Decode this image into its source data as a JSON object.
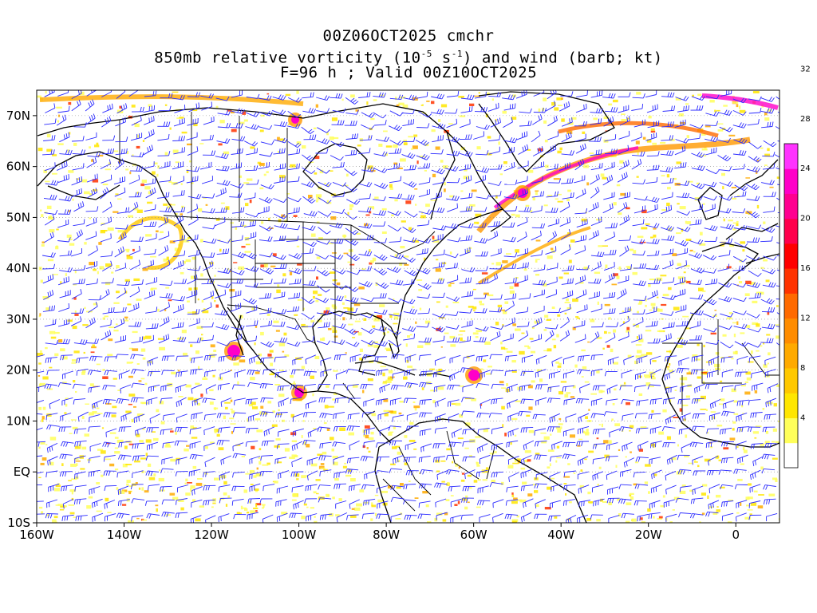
{
  "title": {
    "line1": "00Z06OCT2025 cmchr",
    "line2_prefix": "850mb relative vorticity (10",
    "line2_exp1": "-5",
    "line2_mid": " s",
    "line2_exp2": "-1",
    "line2_suffix": ") and wind (barb; kt)",
    "line3": "F=96 h ; Valid 00Z10OCT2025"
  },
  "axes": {
    "lon_labels": [
      "160W",
      "140W",
      "120W",
      "100W",
      "80W",
      "60W",
      "40W",
      "20W",
      "0"
    ],
    "lat_labels": [
      "70N",
      "60N",
      "50N",
      "40N",
      "30N",
      "20N",
      "10N",
      "EQ",
      "10S"
    ],
    "lon_range": [
      -160,
      10
    ],
    "lat_range": [
      -10,
      75
    ]
  },
  "colorbar": {
    "labels": [
      "4",
      "8",
      "12",
      "16",
      "20",
      "24",
      "28",
      "32"
    ],
    "colors": [
      "#ffffff",
      "#ffff5a",
      "#ffe600",
      "#ffc800",
      "#ffaa00",
      "#ff8c00",
      "#ff6a00",
      "#ff3300",
      "#ff0000",
      "#ff004c",
      "#ff0090",
      "#ff00c8",
      "#ff33ff"
    ]
  },
  "colors": {
    "barb": "#2a2aff",
    "coast": "#000000",
    "frame": "#000000"
  }
}
